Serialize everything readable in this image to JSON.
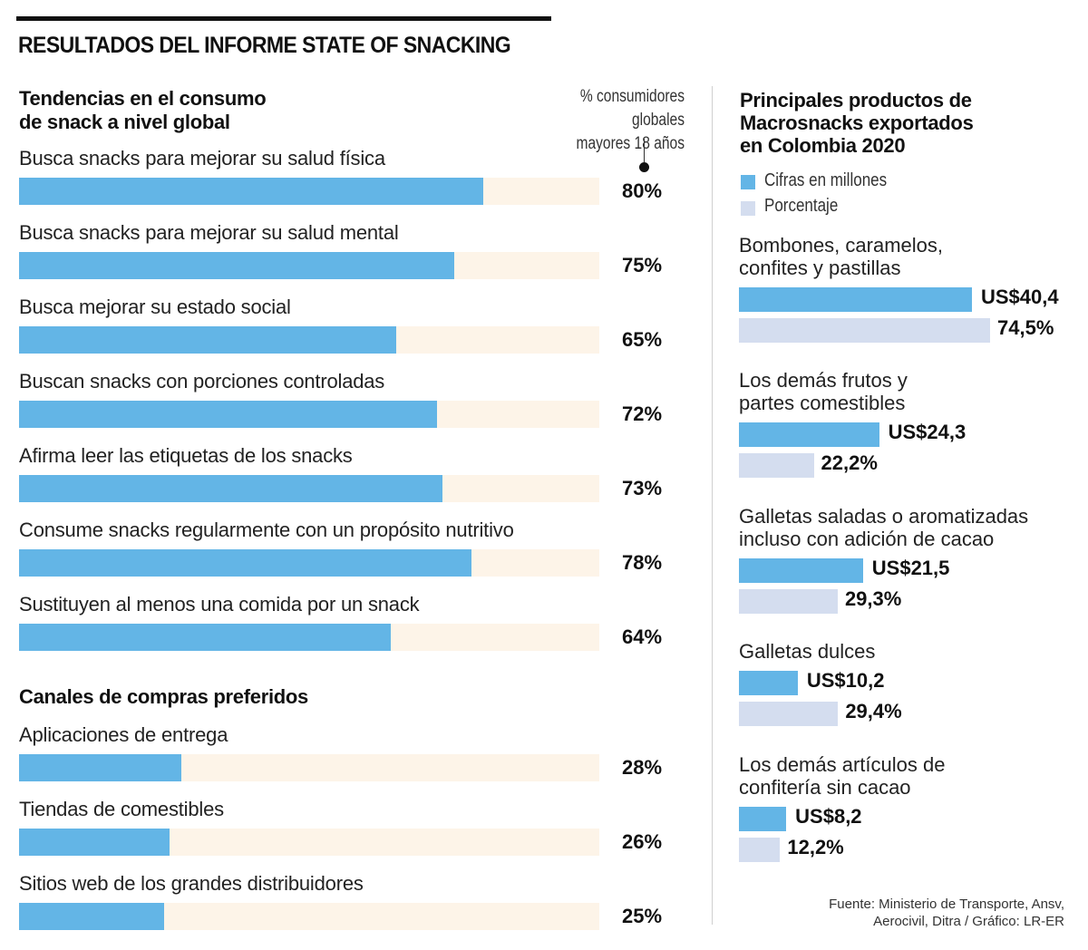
{
  "title": "RESULTADOS DEL INFORME STATE OF SNACKING",
  "source": [
    "Fuente: Ministerio de Transporte, Ansv,",
    "Aerocivil, Ditra / Gráfico: LR-ER"
  ],
  "colors": {
    "bar_primary": "#63b5e6",
    "bar_track": "#fdf4e8",
    "bar_secondary": "#d4ddef"
  },
  "chart_data": [
    {
      "type": "bar",
      "orientation": "horizontal",
      "title": [
        "Tendencias en el consumo",
        "de snack a nivel global"
      ],
      "unit_note": [
        "% consumidores globales",
        "mayores 18 años"
      ],
      "xlim": [
        0,
        100
      ],
      "categories": [
        "Busca snacks para mejorar su salud física",
        "Busca snacks para mejorar su salud mental",
        "Busca mejorar su estado social",
        "Buscan snacks con porciones controladas",
        "Afirma leer las etiquetas de los snacks",
        "Consume snacks regularmente con un propósito nutritivo",
        "Sustituyen al menos una comida por un snack"
      ],
      "values": [
        80,
        75,
        65,
        72,
        73,
        78,
        64
      ],
      "labels": [
        "80%",
        "75%",
        "65%",
        "72%",
        "73%",
        "78%",
        "64%"
      ]
    },
    {
      "type": "bar",
      "orientation": "horizontal",
      "title": [
        "Canales de compras preferidos"
      ],
      "xlim": [
        0,
        100
      ],
      "categories": [
        "Aplicaciones de entrega",
        "Tiendas de comestibles",
        "Sitios web de los grandes distribuidores"
      ],
      "values": [
        28,
        26,
        25
      ],
      "labels": [
        "28%",
        "26%",
        "25%"
      ]
    },
    {
      "type": "bar",
      "orientation": "horizontal",
      "title": [
        "Principales productos de",
        "Macrosnacks exportados",
        "en Colombia 2020"
      ],
      "legend": [
        "Cifras en millones",
        "Porcentaje"
      ],
      "legend_position": "top-left",
      "categories": [
        [
          "Bombones, caramelos,",
          "confites y pastillas"
        ],
        [
          "Los demás frutos y",
          "partes comestibles"
        ],
        [
          "Galletas saladas o aromatizadas",
          "incluso con adición de cacao"
        ],
        [
          "Galletas dulces"
        ],
        [
          "Los demás artículos de",
          "confitería sin cacao"
        ]
      ],
      "series": [
        {
          "name": "Cifras en millones",
          "values": [
            40.4,
            24.3,
            21.5,
            10.2,
            8.2
          ],
          "labels": [
            "US$40,4",
            "US$24,3",
            "US$21,5",
            "US$10,2",
            "US$8,2"
          ]
        },
        {
          "name": "Porcentaje",
          "values": [
            74.5,
            22.2,
            29.3,
            29.4,
            12.2
          ],
          "labels": [
            "74,5%",
            "22,2%",
            "29,3%",
            "29,4%",
            "12,2%"
          ]
        }
      ]
    }
  ]
}
